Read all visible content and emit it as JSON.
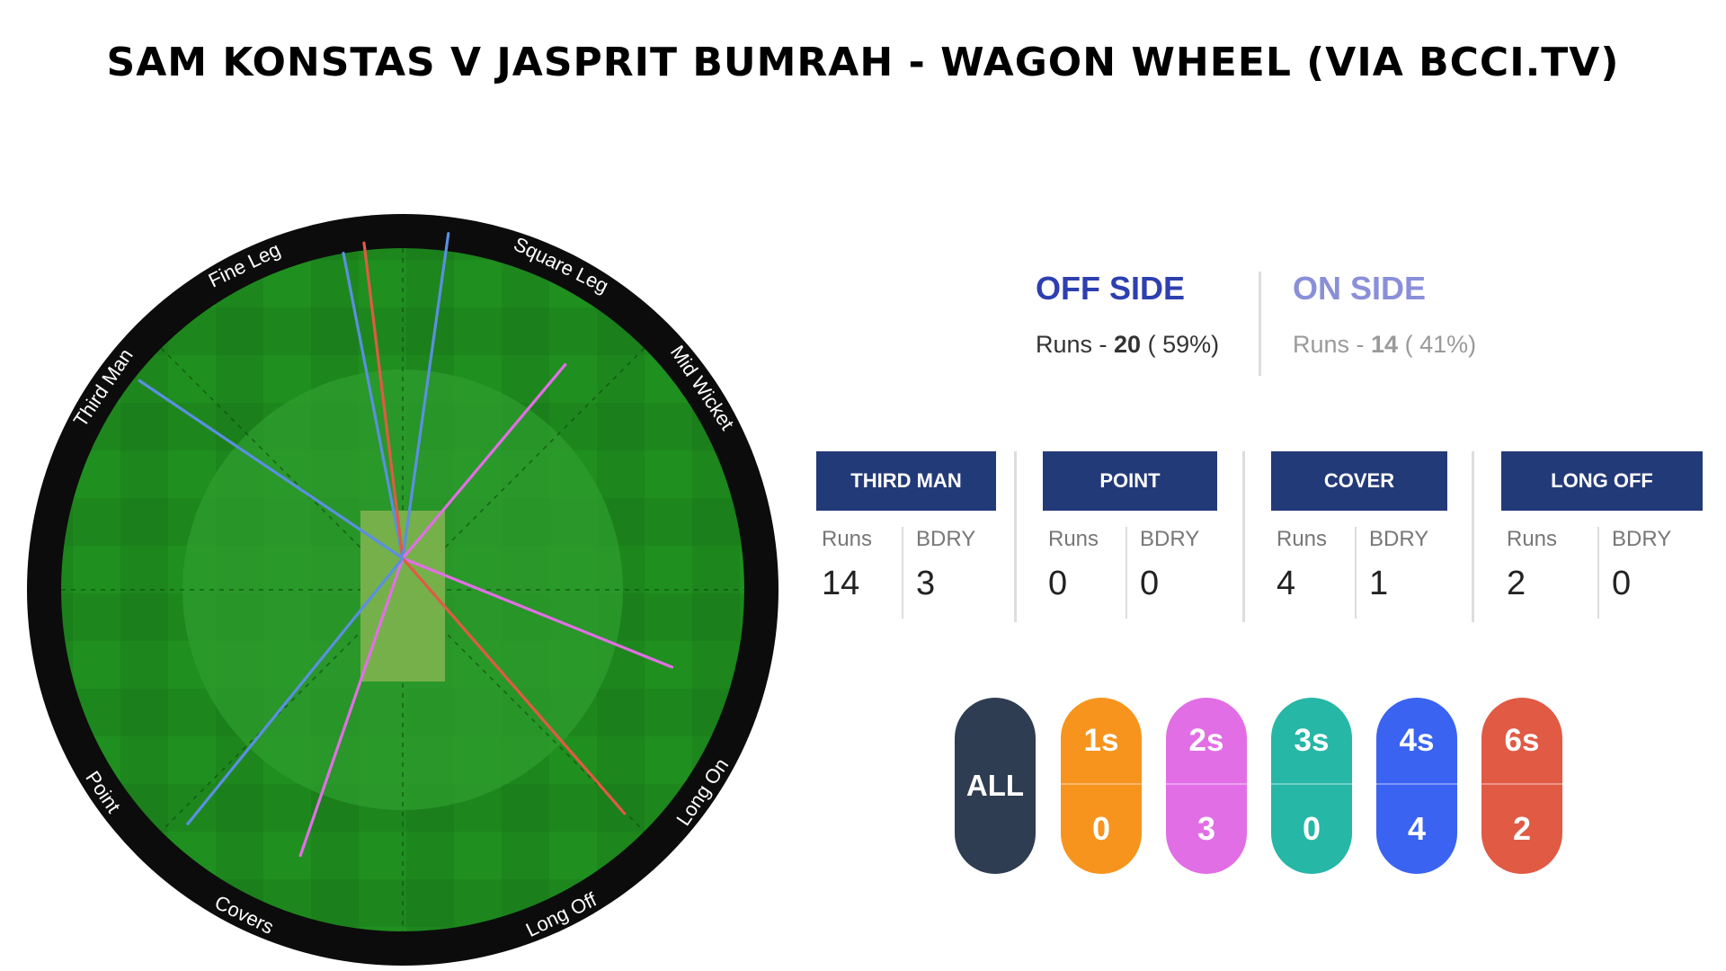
{
  "title": "SAM KONSTAS V JASPRIT BUMRAH - WAGON WHEEL  (VIA BCCI.TV)",
  "colors": {
    "ring": "#0c0c0c",
    "outfield": "#1f8f1f",
    "infield": "#2d9c2d",
    "pitch": "#76b04a",
    "two_runs": "#e26ee6",
    "four_runs": "#5b8fe0",
    "six_runs": "#e05a44"
  },
  "sides": {
    "off": {
      "label": "OFF SIDE",
      "runs_prefix": "Runs - ",
      "runs": "20",
      "pct": " ( 59%)"
    },
    "on": {
      "label": "ON SIDE",
      "runs_prefix": "Runs - ",
      "runs": "14",
      "pct": " ( 41%)"
    }
  },
  "zones": [
    {
      "label": "THIRD MAN",
      "runs_label": "Runs",
      "bdry_label": "BDRY",
      "runs": "14",
      "bdry": "3"
    },
    {
      "label": "POINT",
      "runs_label": "Runs",
      "bdry_label": "BDRY",
      "runs": "0",
      "bdry": "0"
    },
    {
      "label": "COVER",
      "runs_label": "Runs",
      "bdry_label": "BDRY",
      "runs": "4",
      "bdry": "1"
    },
    {
      "label": "LONG OFF",
      "runs_label": "Runs",
      "bdry_label": "BDRY",
      "runs": "2",
      "bdry": "0"
    }
  ],
  "filters": [
    {
      "label": "ALL",
      "color": "#2e3d52"
    },
    {
      "label": "1s",
      "count": "0",
      "color": "#f7941d"
    },
    {
      "label": "2s",
      "count": "3",
      "color": "#e26ee6"
    },
    {
      "label": "3s",
      "count": "0",
      "color": "#26b7a6"
    },
    {
      "label": "4s",
      "count": "4",
      "color": "#3a63f2"
    },
    {
      "label": "6s",
      "count": "2",
      "color": "#e05a44"
    }
  ],
  "chart_data": {
    "type": "wagon-wheel",
    "field_labels": [
      "Third Man",
      "Fine Leg",
      "Square Leg",
      "Mid Wicket",
      "Long On",
      "Long Off",
      "Covers",
      "Point"
    ],
    "shots": [
      {
        "runs": 4,
        "angle": -56,
        "length": 0.93
      },
      {
        "runs": 4,
        "angle": -11,
        "length": 0.91
      },
      {
        "runs": 6,
        "angle": -7,
        "length": 0.93
      },
      {
        "runs": 4,
        "angle": 8,
        "length": 0.96
      },
      {
        "runs": 2,
        "angle": 40,
        "length": 0.74
      },
      {
        "runs": 2,
        "angle": 112,
        "length": 0.85
      },
      {
        "runs": 6,
        "angle": 139,
        "length": 0.99
      },
      {
        "runs": 2,
        "angle": 199,
        "length": 0.92
      },
      {
        "runs": 4,
        "angle": 219,
        "length": 1.0
      }
    ]
  }
}
